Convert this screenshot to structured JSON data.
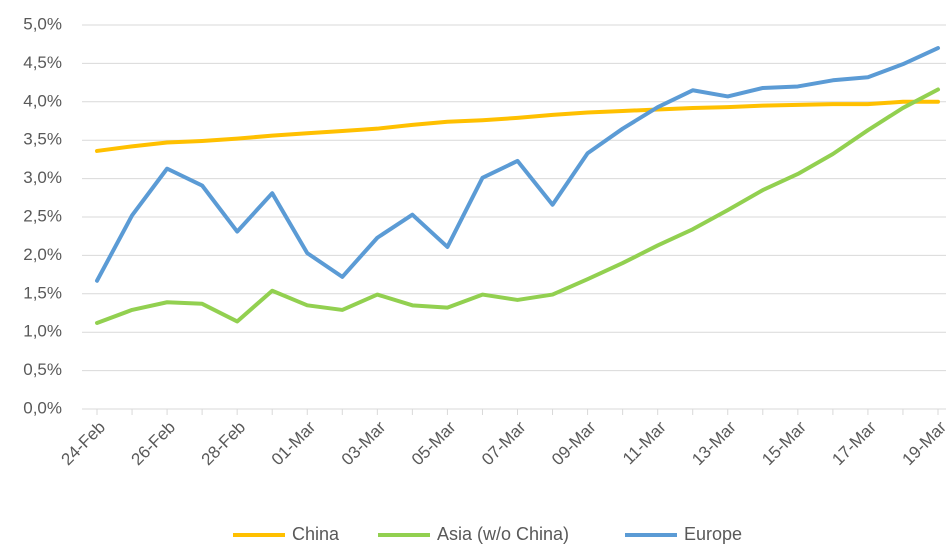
{
  "chart_data": {
    "type": "line",
    "categories": [
      "24-Feb",
      null,
      "26-Feb",
      null,
      "28-Feb",
      null,
      "01-Mar",
      null,
      "03-Mar",
      null,
      "05-Mar",
      null,
      "07-Mar",
      null,
      "09-Mar",
      null,
      "11-Mar",
      null,
      "13-Mar",
      null,
      "15-Mar",
      null,
      "17-Mar",
      null,
      "19-Mar"
    ],
    "series": [
      {
        "name": "China",
        "color": "#ffc000",
        "values": [
          3.36,
          3.42,
          3.47,
          3.49,
          3.52,
          3.56,
          3.59,
          3.62,
          3.65,
          3.7,
          3.74,
          3.76,
          3.79,
          3.83,
          3.86,
          3.88,
          3.9,
          3.92,
          3.93,
          3.95,
          3.96,
          3.97,
          3.97,
          4.0,
          4.0
        ]
      },
      {
        "name": "Asia (w/o China)",
        "color": "#92d050",
        "values": [
          1.12,
          1.29,
          1.39,
          1.37,
          1.14,
          1.54,
          1.35,
          1.29,
          1.49,
          1.35,
          1.32,
          1.49,
          1.42,
          1.49,
          1.69,
          1.9,
          2.13,
          2.34,
          2.59,
          2.85,
          3.06,
          3.32,
          3.63,
          3.92,
          4.16
        ]
      },
      {
        "name": "Europe",
        "color": "#5b9bd5",
        "values": [
          1.67,
          2.52,
          3.13,
          2.91,
          2.31,
          2.81,
          2.03,
          1.72,
          2.23,
          2.53,
          2.11,
          3.01,
          3.23,
          2.66,
          3.33,
          3.65,
          3.93,
          4.15,
          4.07,
          4.18,
          4.2,
          4.28,
          4.32,
          4.49,
          4.7
        ]
      }
    ],
    "ylim": [
      0,
      5
    ],
    "yticks": [
      {
        "value": 0,
        "label": "0,0%"
      },
      {
        "value": 0.5,
        "label": "0,5%"
      },
      {
        "value": 1,
        "label": "1,0%"
      },
      {
        "value": 1.5,
        "label": "1,5%"
      },
      {
        "value": 2,
        "label": "2,0%"
      },
      {
        "value": 2.5,
        "label": "2,5%"
      },
      {
        "value": 3,
        "label": "3,0%"
      },
      {
        "value": 3.5,
        "label": "3,5%"
      },
      {
        "value": 4,
        "label": "4,0%"
      },
      {
        "value": 4.5,
        "label": "4,5%"
      },
      {
        "value": 5,
        "label": "5,0%"
      }
    ],
    "grid": true,
    "legend": "bottom"
  }
}
